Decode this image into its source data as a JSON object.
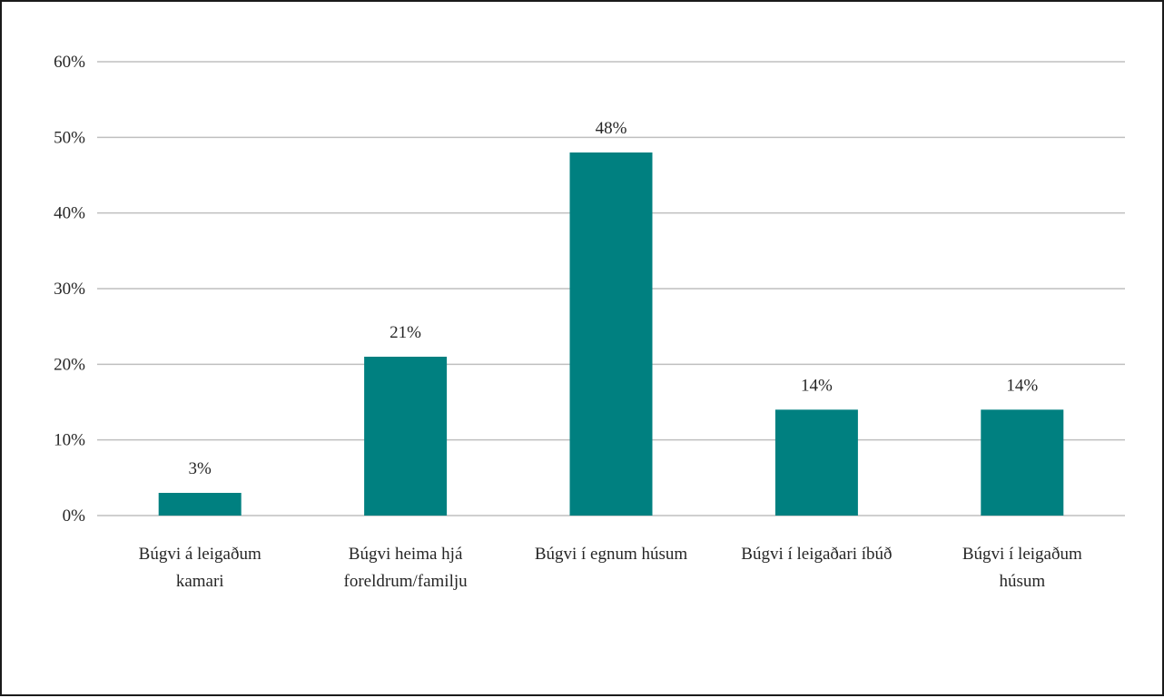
{
  "chart_data": {
    "type": "bar",
    "categories": [
      [
        "Búgvi á leigaðum",
        "kamari"
      ],
      [
        "Búgvi heima hjá",
        "foreldrum/familju"
      ],
      [
        "Búgvi í egnum húsum"
      ],
      [
        "Búgvi í leigaðari íbúð"
      ],
      [
        "Búgvi í leigaðum",
        "húsum"
      ]
    ],
    "values": [
      3,
      21,
      48,
      14,
      14
    ],
    "data_labels": [
      "3%",
      "21%",
      "48%",
      "14%",
      "14%"
    ],
    "y_ticks": [
      0,
      10,
      20,
      30,
      40,
      50,
      60
    ],
    "y_tick_labels": [
      "0%",
      "10%",
      "20%",
      "30%",
      "40%",
      "50%",
      "60%"
    ],
    "ylim": [
      0,
      60
    ],
    "grid": true,
    "legend": "none",
    "bar_color": "#008080",
    "grid_color": "#bfbfbf"
  }
}
